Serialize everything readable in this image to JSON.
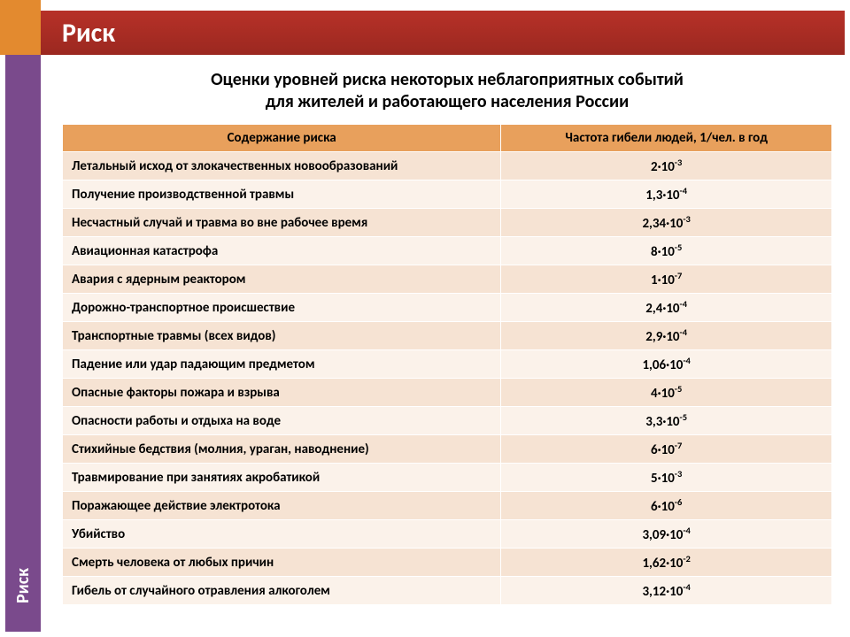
{
  "colors": {
    "accent_orange": "#e38a2f",
    "header_gradient_top": "#b73128",
    "header_gradient_bottom": "#9b2820",
    "side_purple": "#7a4a8c",
    "table_header_bg": "#e8a05c",
    "row_odd_bg": "#f6e3d3",
    "row_even_bg": "#fbf2ea",
    "text": "#000000",
    "header_text": "#ffffff"
  },
  "typography": {
    "header_fontsize": 30,
    "subtitle_fontsize": 20,
    "table_fontsize": 15,
    "side_fontsize": 20,
    "font_family": "Calibri"
  },
  "header": {
    "title": "Риск"
  },
  "side": {
    "label": "Риск"
  },
  "subtitle": {
    "line1": "Оценки уровней риска некоторых неблагоприятных событий",
    "line2": "для жителей и работающего населения России"
  },
  "table": {
    "type": "table",
    "columns": [
      {
        "label": "Содержание риска",
        "width_pct": 57,
        "align": "left"
      },
      {
        "label": "Частота гибели людей, 1/чел. в год",
        "width_pct": 43,
        "align": "center"
      }
    ],
    "rows": [
      {
        "desc": "Летальный исход от злокачественных новообразований",
        "coef": "2",
        "exp": "-3"
      },
      {
        "desc": "Получение производственной травмы",
        "coef": "1,3",
        "exp": "-4"
      },
      {
        "desc": "Несчастный случай и травма во вне рабочее время",
        "coef": "2,34",
        "exp": "-3"
      },
      {
        "desc": "Авиационная катастрофа",
        "coef": "8",
        "exp": "-5"
      },
      {
        "desc": "Авария с ядерным реактором",
        "coef": "1",
        "exp": "-7"
      },
      {
        "desc": "Дорожно-транспортное происшествие",
        "coef": "2,4",
        "exp": "-4"
      },
      {
        "desc": "Транспортные травмы (всех видов)",
        "coef": "2,9",
        "exp": "-4"
      },
      {
        "desc": "Падение или удар падающим предметом",
        "coef": "1,06",
        "exp": "-4"
      },
      {
        "desc": "Опасные факторы пожара и взрыва",
        "coef": "4",
        "exp": "-5"
      },
      {
        "desc": "Опасности работы и отдыха на воде",
        "coef": "3,3",
        "exp": "-5"
      },
      {
        "desc": "Стихийные бедствия (молния, ураган, наводнение)",
        "coef": "6",
        "exp": "-7"
      },
      {
        "desc": "Травмирование при занятиях акробатикой",
        "coef": "5",
        "exp": "-3"
      },
      {
        "desc": "Поражающее действие электротока",
        "coef": "6",
        "exp": "-6"
      },
      {
        "desc": "Убийство",
        "coef": "3,09",
        "exp": "-4"
      },
      {
        "desc": "Смерть человека от любых причин",
        "coef": "1,62",
        "exp": "-2"
      },
      {
        "desc": "Гибель от случайного отравления алкоголем",
        "coef": "3,12",
        "exp": "-4"
      }
    ]
  }
}
